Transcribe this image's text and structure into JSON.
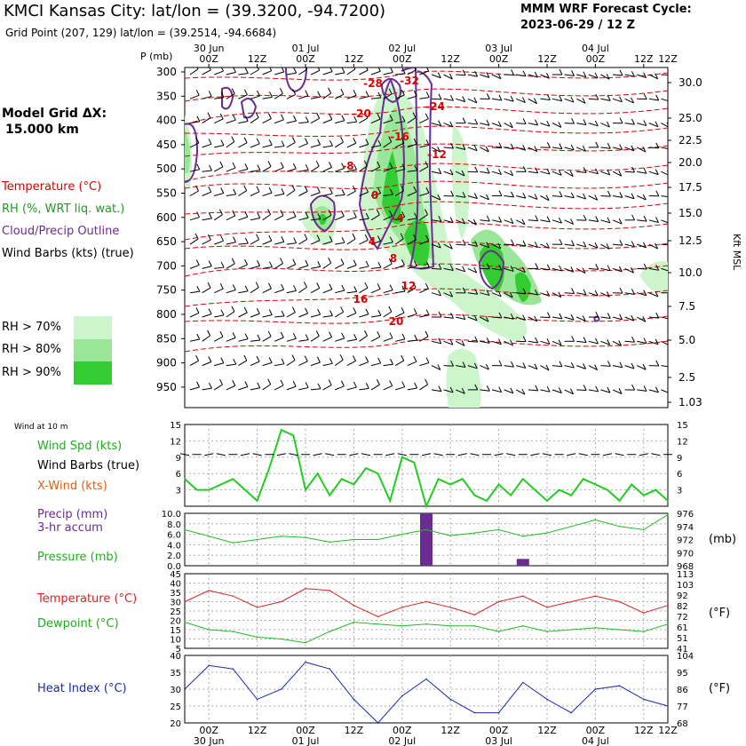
{
  "header": {
    "title": "KMCI Kansas City:  lat/lon = (39.3200, -94.7200)",
    "subtitle": "Grid Point (207, 129) lat/lon = (39.2514, -94.6684)",
    "cycle_title": "MMM WRF Forecast Cycle:",
    "cycle": "2023-06-29 / 12  Z",
    "grid_label": "Model Grid ΔX:",
    "grid_value": "15.000 km"
  },
  "legend": {
    "temperature": "Temperature (°C)",
    "rh": "RH (%, WRT liq. wat.)",
    "cloud": "Cloud/Precip Outline",
    "barbs": "Wind Barbs (kts) (true)",
    "rh70": "RH > 70%",
    "rh80": "RH > 80%",
    "rh90": "RH > 90%",
    "colors": {
      "temperature": "#dd0000",
      "rh70": "#ccf5cc",
      "rh80": "#99e699",
      "rh90": "#33cc33",
      "cloud": "#6a2c91"
    }
  },
  "time_axis": {
    "hour_labels": [
      "00Z",
      "12Z",
      "00Z",
      "12Z",
      "00Z",
      "12Z",
      "00Z",
      "12Z",
      "00Z",
      "12Z"
    ],
    "date_labels": [
      "30 Jun",
      "01 Jul",
      "02 Jul",
      "03 Jul",
      "04 Jul"
    ]
  },
  "cross_section": {
    "pressure_header": "P (mb)",
    "pressure_levels": [
      "300",
      "350",
      "400",
      "450",
      "500",
      "550",
      "600",
      "650",
      "700",
      "750",
      "800",
      "850",
      "900",
      "950"
    ],
    "height_ticks": [
      "30.0",
      "25.0",
      "22.5",
      "20.0",
      "17.5",
      "15.0",
      "12.5",
      "10.0",
      "7.5",
      "5.0",
      "2.5",
      "1.03"
    ],
    "height_axis_label": "Kft MSL",
    "temperature_labels": [
      "-28",
      "-32",
      "-20",
      "-24",
      "-16",
      "-8",
      "-12",
      "-4",
      "0",
      "4",
      "8",
      "12",
      "16",
      "20"
    ]
  },
  "surface_panel": {
    "title": "Wind at 10 m",
    "labels": {
      "speed": "Wind Spd (kts)",
      "barbs": "Wind Barbs (true)",
      "xwind": "X-Wind (kts)"
    },
    "y_ticks": [
      "15",
      "12",
      "9",
      "6",
      "3"
    ],
    "colors": {
      "speed": "#22cc22",
      "xwind": "#e06010"
    }
  },
  "precip_panel": {
    "labels": {
      "precip": "Precip (mm)",
      "accum": "3-hr accum",
      "pressure": "Pressure (mb)"
    },
    "left_ticks": [
      "10.0",
      "8.0",
      "6.0",
      "4.0",
      "2.0",
      "0.0"
    ],
    "right_ticks": [
      "976",
      "974",
      "972",
      "970",
      "968"
    ],
    "unit": "(mb)",
    "colors": {
      "precip": "#6a2c91",
      "pressure": "#22bb22"
    }
  },
  "temp_panel": {
    "labels": {
      "temperature": "Temperature (°C)",
      "dewpoint": "Dewpoint (°C)"
    },
    "left_ticks": [
      "45",
      "40",
      "35",
      "30",
      "25",
      "20",
      "15",
      "10",
      "5"
    ],
    "right_ticks": [
      "113",
      "103",
      "92",
      "82",
      "72",
      "61",
      "51",
      "41"
    ],
    "unit": "(°F)",
    "colors": {
      "temperature": "#dd2222",
      "dewpoint": "#22bb22"
    }
  },
  "heat_panel": {
    "labels": {
      "heat_index": "Heat Index (°C)"
    },
    "left_ticks": [
      "40",
      "35",
      "30",
      "25",
      "20"
    ],
    "right_ticks": [
      "104",
      "95",
      "86",
      "77",
      "68"
    ],
    "unit": "(°F)",
    "colors": {
      "heat_index": "#1a2bb0"
    }
  },
  "chart_data": [
    {
      "type": "line",
      "title": "Wind at 10 m",
      "ylabel": "Wind Spd (kts)",
      "ylim": [
        0,
        15
      ],
      "x_hours": [
        0,
        3,
        6,
        9,
        12,
        15,
        18,
        21,
        24,
        27,
        30,
        33,
        36,
        39,
        42,
        45,
        48,
        51,
        54,
        57,
        60,
        63,
        66,
        69,
        72,
        75,
        78,
        81,
        84,
        87,
        90,
        93,
        96,
        99,
        102,
        105,
        108,
        111,
        114,
        117,
        120
      ],
      "series": [
        {
          "name": "Wind Spd (kts)",
          "values": [
            5,
            3,
            3,
            4,
            5,
            3,
            1,
            7,
            14,
            13,
            3,
            6,
            2,
            5,
            4,
            7,
            6,
            1,
            9,
            8,
            0,
            5,
            4,
            5,
            2,
            1,
            4,
            2,
            5,
            3,
            1,
            3,
            2,
            5,
            4,
            3,
            1,
            4,
            2,
            3,
            1
          ]
        }
      ]
    },
    {
      "type": "bar",
      "title": "Precip (mm) 3-hr accum",
      "ylim": [
        0,
        10
      ],
      "x_hours": [
        60,
        84
      ],
      "values": [
        10.0,
        1.3
      ]
    },
    {
      "type": "line",
      "title": "Pressure (mb)",
      "ylim": [
        968,
        976
      ],
      "x_hours": [
        0,
        6,
        12,
        18,
        24,
        30,
        36,
        42,
        48,
        54,
        60,
        66,
        72,
        78,
        84,
        90,
        96,
        102,
        108,
        114,
        120
      ],
      "series": [
        {
          "name": "Pressure (mb)",
          "values": [
            973.5,
            972.5,
            971.5,
            972.0,
            972.5,
            972.3,
            971.6,
            972.0,
            972.0,
            972.8,
            973.5,
            972.6,
            973.0,
            973.5,
            972.5,
            973.0,
            974.0,
            975.0,
            974.0,
            973.5,
            975.8
          ]
        }
      ]
    },
    {
      "type": "line",
      "title": "Temperature / Dewpoint (°C)",
      "ylim": [
        5,
        45
      ],
      "x_hours": [
        0,
        6,
        12,
        18,
        24,
        30,
        36,
        42,
        48,
        54,
        60,
        66,
        72,
        78,
        84,
        90,
        96,
        102,
        108,
        114,
        120
      ],
      "series": [
        {
          "name": "Temperature (°C)",
          "values": [
            30,
            36,
            33,
            27,
            30,
            37,
            36,
            28,
            22,
            27,
            30,
            27,
            23,
            30,
            33,
            27,
            30,
            33,
            30,
            24,
            28
          ]
        },
        {
          "name": "Dewpoint (°C)",
          "values": [
            19,
            15,
            14,
            11,
            10,
            8,
            14,
            19,
            18,
            17,
            18,
            17,
            17,
            14,
            17,
            14,
            15,
            16,
            15,
            14,
            18
          ]
        }
      ]
    },
    {
      "type": "line",
      "title": "Heat Index (°C)",
      "ylim": [
        20,
        40
      ],
      "x_hours": [
        0,
        6,
        12,
        18,
        24,
        30,
        36,
        42,
        48,
        54,
        60,
        66,
        72,
        78,
        84,
        90,
        96,
        102,
        108,
        114,
        120
      ],
      "series": [
        {
          "name": "Heat Index (°C)",
          "values": [
            30,
            37,
            36,
            27,
            30,
            38,
            36,
            27,
            20,
            28,
            33,
            27,
            23,
            23,
            32,
            27,
            23,
            30,
            31,
            27,
            25
          ]
        }
      ]
    }
  ]
}
